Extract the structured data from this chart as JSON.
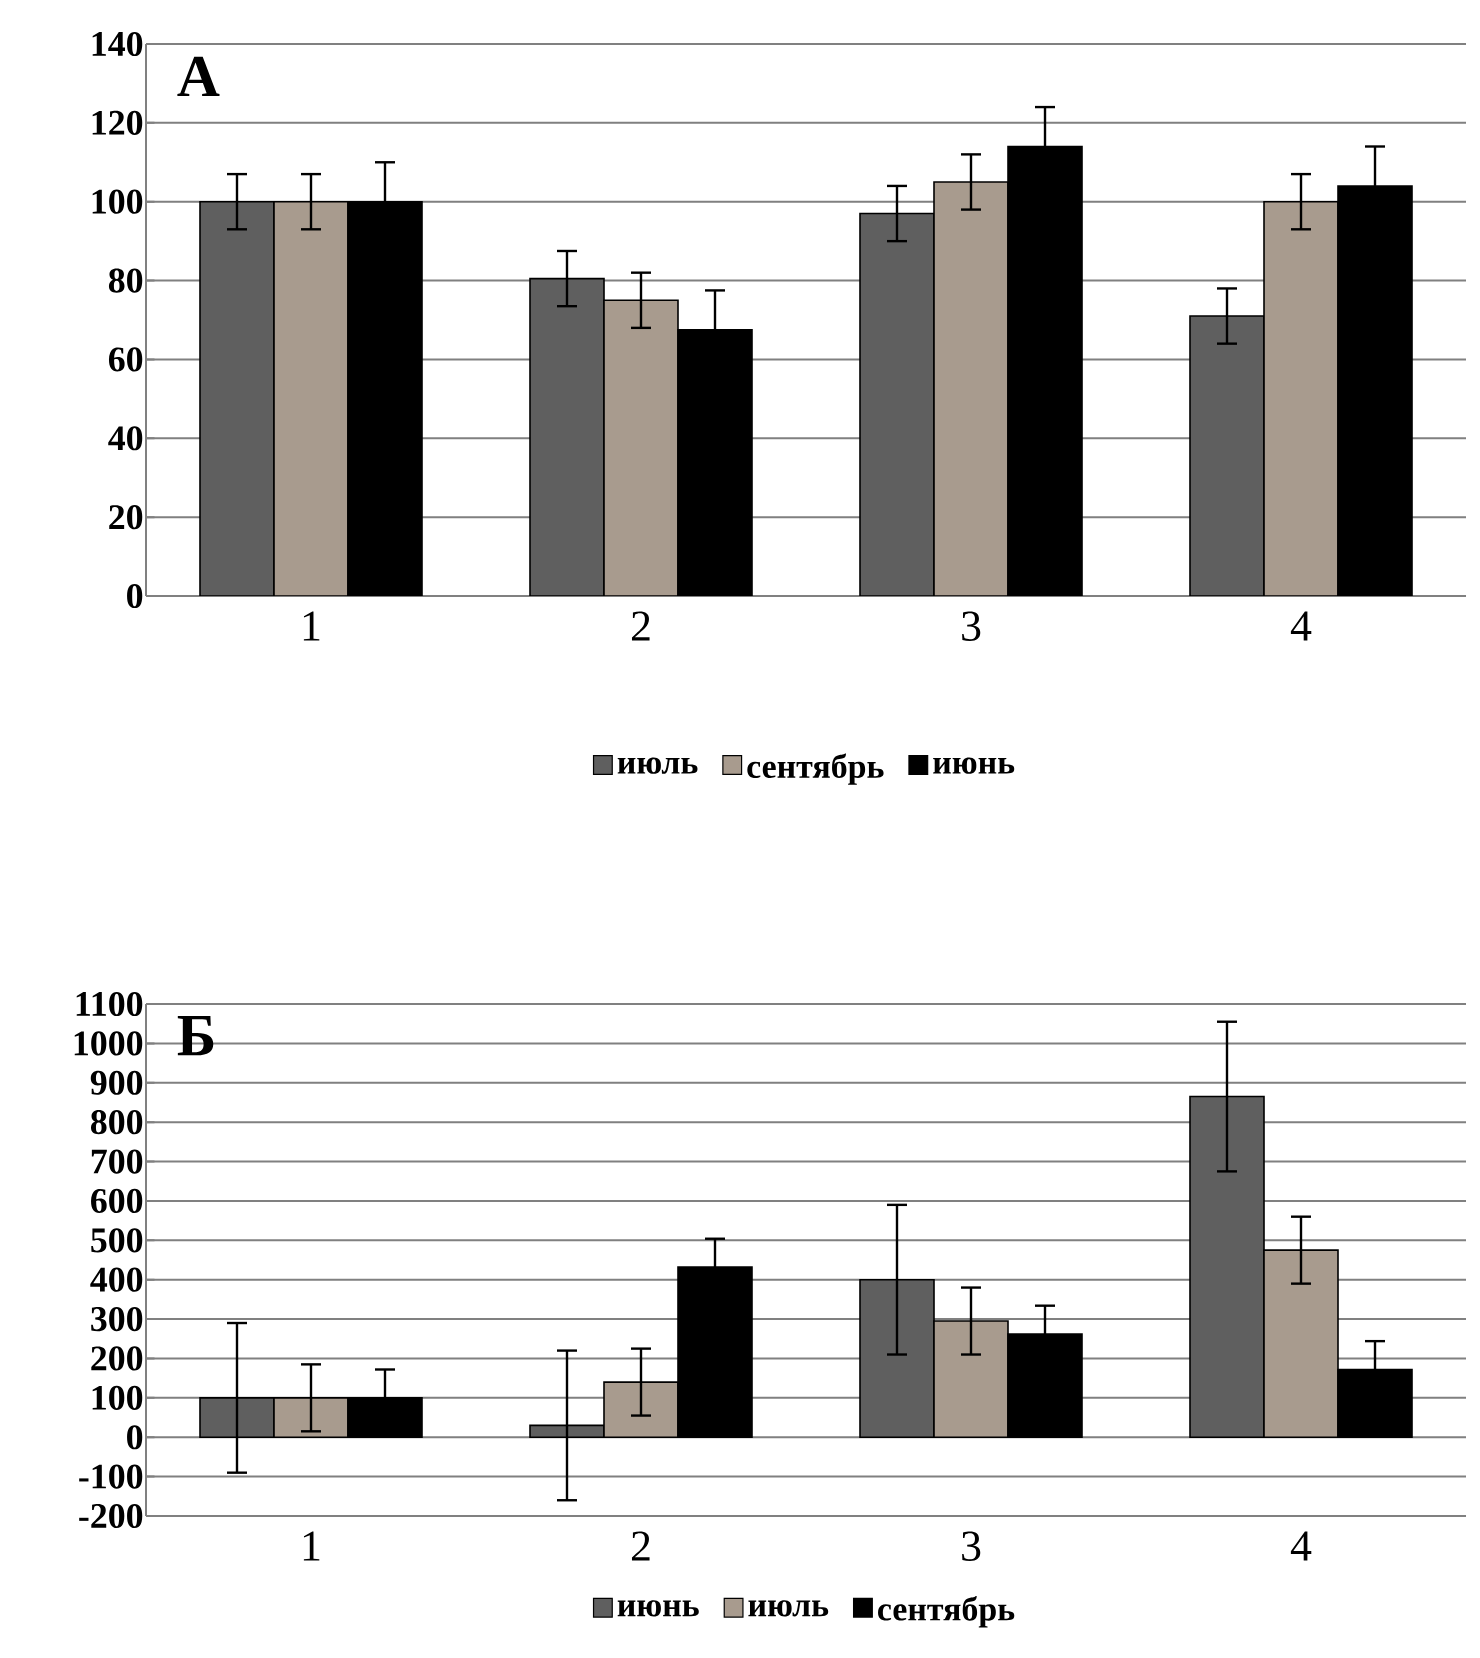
{
  "chart_data": [
    {
      "type": "bar",
      "categories": [
        "1",
        "2",
        "3",
        "4"
      ],
      "series": [
        {
          "name": "июль",
          "color": "#5f5f5f",
          "values": [
            100,
            80.5,
            97,
            71
          ],
          "errors": [
            7,
            7,
            7,
            7
          ]
        },
        {
          "name": "сентябрь",
          "color": "#a89b8e",
          "values": [
            100,
            75,
            105,
            100
          ],
          "errors": [
            7,
            7,
            7,
            7
          ]
        },
        {
          "name": "июнь",
          "color": "#000000",
          "values": [
            100,
            67.5,
            114,
            104
          ],
          "errors": [
            10,
            10,
            10,
            10
          ]
        }
      ],
      "ylim": [
        0,
        140
      ],
      "yticks": [
        0,
        20,
        40,
        60,
        80,
        100,
        120,
        140
      ],
      "grid": "y",
      "legend": "bottom",
      "annotations": [
        "А"
      ]
    },
    {
      "type": "bar",
      "categories": [
        "1",
        "2",
        "3",
        "4"
      ],
      "series": [
        {
          "name": "июнь",
          "color": "#5f5f5f",
          "values": [
            100,
            30,
            400,
            865
          ],
          "errors": [
            190,
            190,
            190,
            190
          ]
        },
        {
          "name": "июль",
          "color": "#a89b8e",
          "values": [
            100,
            140,
            295,
            475
          ],
          "errors": [
            85,
            85,
            85,
            85
          ]
        },
        {
          "name": "сентябрь",
          "color": "#000000",
          "values": [
            100,
            432,
            262,
            172
          ],
          "errors": [
            72,
            72,
            72,
            72
          ]
        }
      ],
      "ylim": [
        -200,
        1100
      ],
      "yticks": [
        -200,
        -100,
        0,
        100,
        200,
        300,
        400,
        500,
        600,
        700,
        800,
        900,
        1000,
        1100
      ],
      "grid": "y",
      "legend": "bottom",
      "annotations": [
        "Б"
      ]
    }
  ]
}
